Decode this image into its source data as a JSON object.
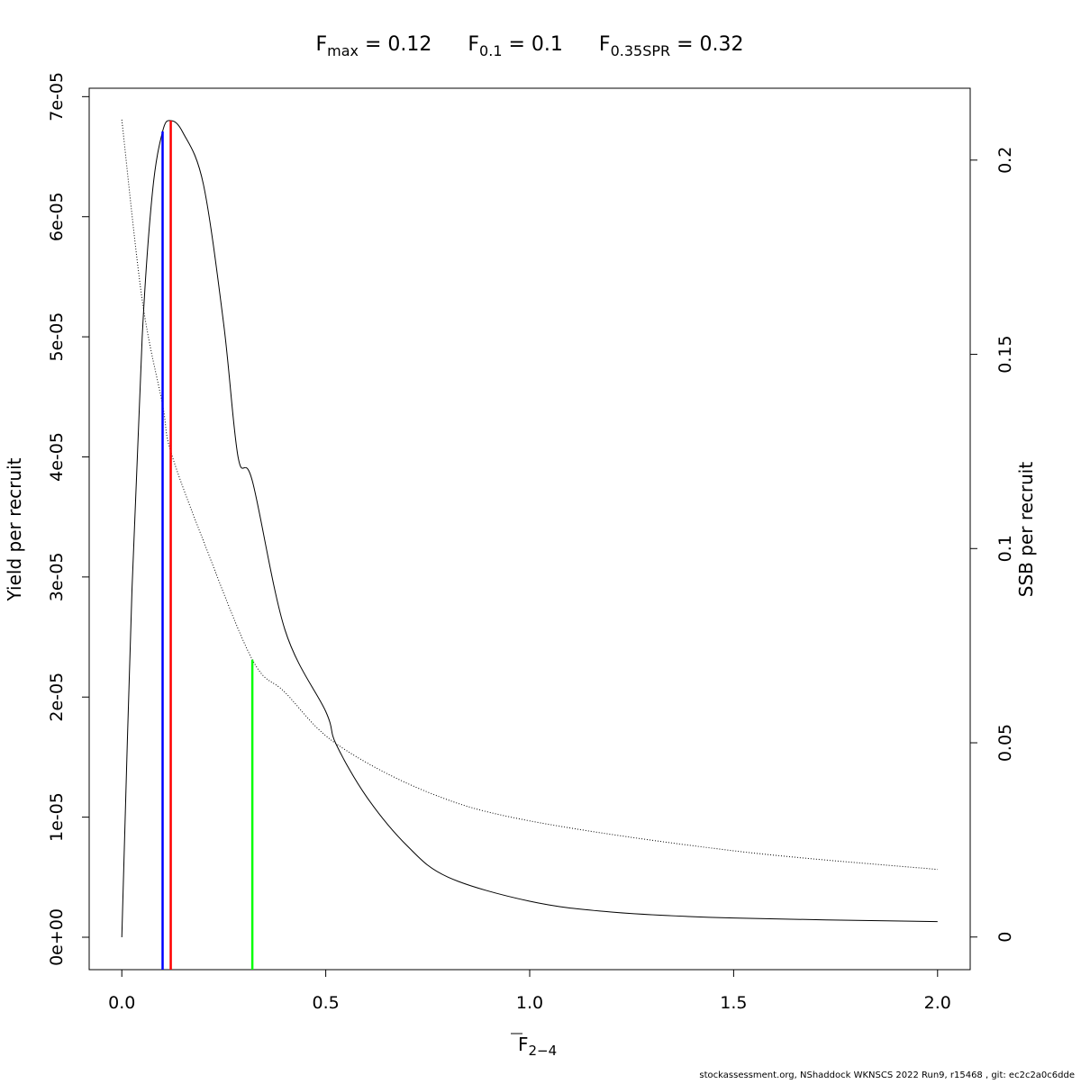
{
  "chart_data": {
    "type": "line",
    "title": {
      "fmax_label": "F",
      "fmax_sub": "max",
      "fmax_value": " = 0.12",
      "f01_label": "F",
      "f01_sub": "0.1",
      "f01_value": " = 0.1",
      "fspr_label": "F",
      "fspr_sub": "0.35SPR",
      "fspr_value": " = 0.32"
    },
    "xlabel": "F",
    "xlabel_sub": "2−4",
    "ylabel_left": "Yield per recruit",
    "ylabel_right": "SSB per recruit",
    "xlim": [
      -0.08,
      2.08
    ],
    "ylim_left": [
      -2.7e-06,
      7.07e-05
    ],
    "ylim_right": [
      -0.0084,
      0.2185
    ],
    "x_ticks": [
      "0.0",
      "0.5",
      "1.0",
      "1.5",
      "2.0"
    ],
    "x_tick_values": [
      0,
      0.5,
      1,
      1.5,
      2
    ],
    "y_left_ticks": [
      "0e+00",
      "1e-05",
      "2e-05",
      "3e-05",
      "4e-05",
      "5e-05",
      "6e-05",
      "7e-05"
    ],
    "y_left_tick_values": [
      0,
      1e-05,
      2e-05,
      3e-05,
      4e-05,
      5e-05,
      6e-05,
      7e-05
    ],
    "y_right_ticks": [
      "0",
      "0.05",
      "0.1",
      "0.15",
      "0.2"
    ],
    "y_right_tick_values": [
      0,
      0.05,
      0.1,
      0.15,
      0.2
    ],
    "grid": false,
    "series": [
      {
        "axis": "left",
        "style": "solid",
        "color": "#000000",
        "x": [
          0,
          0.025,
          0.05,
          0.075,
          0.1,
          0.12,
          0.15,
          0.2,
          0.25,
          0.285,
          0.32,
          0.4,
          0.5,
          0.525,
          0.6,
          0.7,
          0.8,
          1.0,
          1.2,
          1.5,
          2.0
        ],
        "y": [
          0,
          2.9e-05,
          5e-05,
          6.2e-05,
          6.71e-05,
          6.8e-05,
          6.7e-05,
          6.27e-05,
          5.1e-05,
          4e-05,
          3.8e-05,
          2.56e-05,
          1.88e-05,
          1.61e-05,
          1.17e-05,
          7.6e-06,
          5e-06,
          3e-06,
          2.1e-06,
          1.6e-06,
          1.3e-06
        ]
      },
      {
        "axis": "right",
        "style": "dotted",
        "color": "#000000",
        "x": [
          0,
          0.05,
          0.1,
          0.12,
          0.2,
          0.32,
          0.4,
          0.525,
          0.75,
          1.0,
          1.5,
          2.0
        ],
        "y": [
          0.2104,
          0.164,
          0.137,
          0.125,
          0.102,
          0.0714,
          0.063,
          0.0498,
          0.0373,
          0.0299,
          0.0222,
          0.0174
        ]
      }
    ],
    "reference_lines": [
      {
        "name": "F0.1",
        "x": 0.1,
        "axis": "left",
        "top": 6.71e-05,
        "color": "#0000ff"
      },
      {
        "name": "Fmax",
        "x": 0.12,
        "axis": "left",
        "top": 6.8e-05,
        "color": "#ff0000"
      },
      {
        "name": "F0.35SPR",
        "x": 0.32,
        "axis": "right",
        "top": 0.0714,
        "color": "#00ff00"
      }
    ]
  },
  "footer": "stockassessment.org, NShaddock  WKNSCS  2022  Run9, r15468 , git: ec2c2a0c6dde"
}
